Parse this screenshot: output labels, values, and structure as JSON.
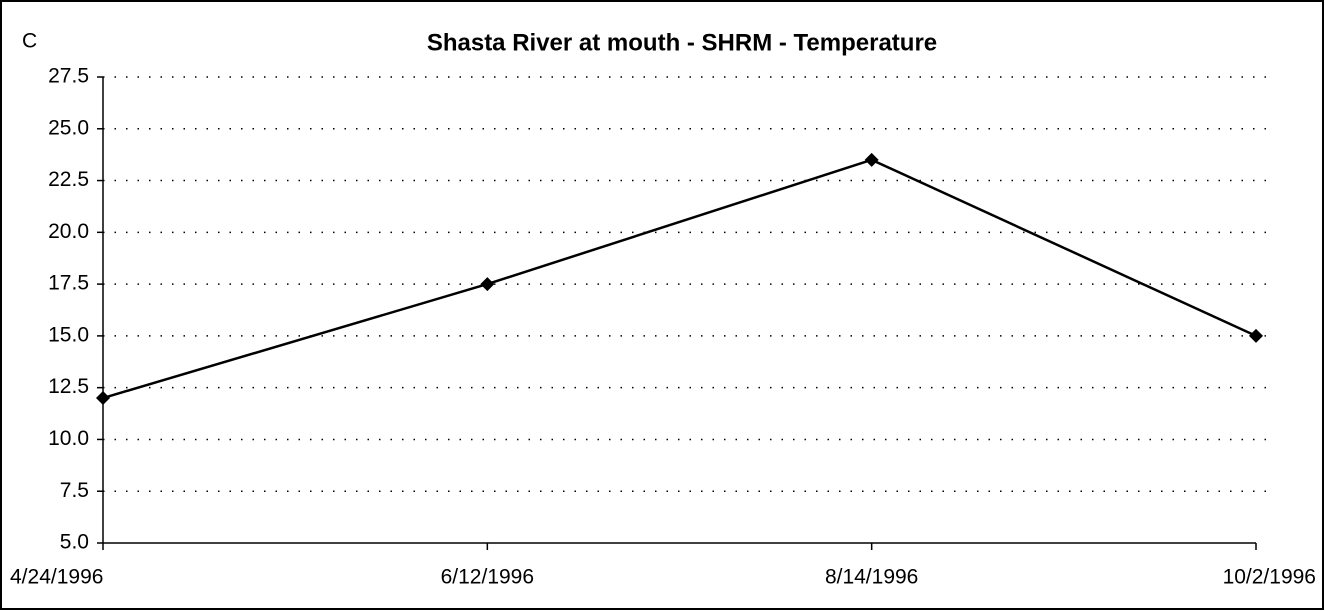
{
  "chart_data": {
    "type": "line",
    "title": "Shasta River at mouth -  SHRM - Temperature",
    "y_label": "C",
    "categories": [
      "4/24/1996",
      "6/12/1996",
      "8/14/1996",
      "10/2/1996"
    ],
    "series": [
      {
        "name": "Temperature",
        "color": "#000000",
        "values": [
          12.0,
          17.5,
          23.5,
          15.0
        ]
      }
    ],
    "ylim": [
      5,
      27.5
    ],
    "yticks": [
      {
        "value": 5,
        "label": "5.0"
      },
      7.5,
      {
        "value": 10,
        "label": "10.0"
      },
      12.5,
      {
        "value": 15,
        "label": "15.0"
      },
      17.5,
      {
        "value": 20,
        "label": "20.0"
      },
      22.5,
      {
        "value": 25,
        "label": "25.0"
      },
      27.5
    ],
    "grid": true
  }
}
